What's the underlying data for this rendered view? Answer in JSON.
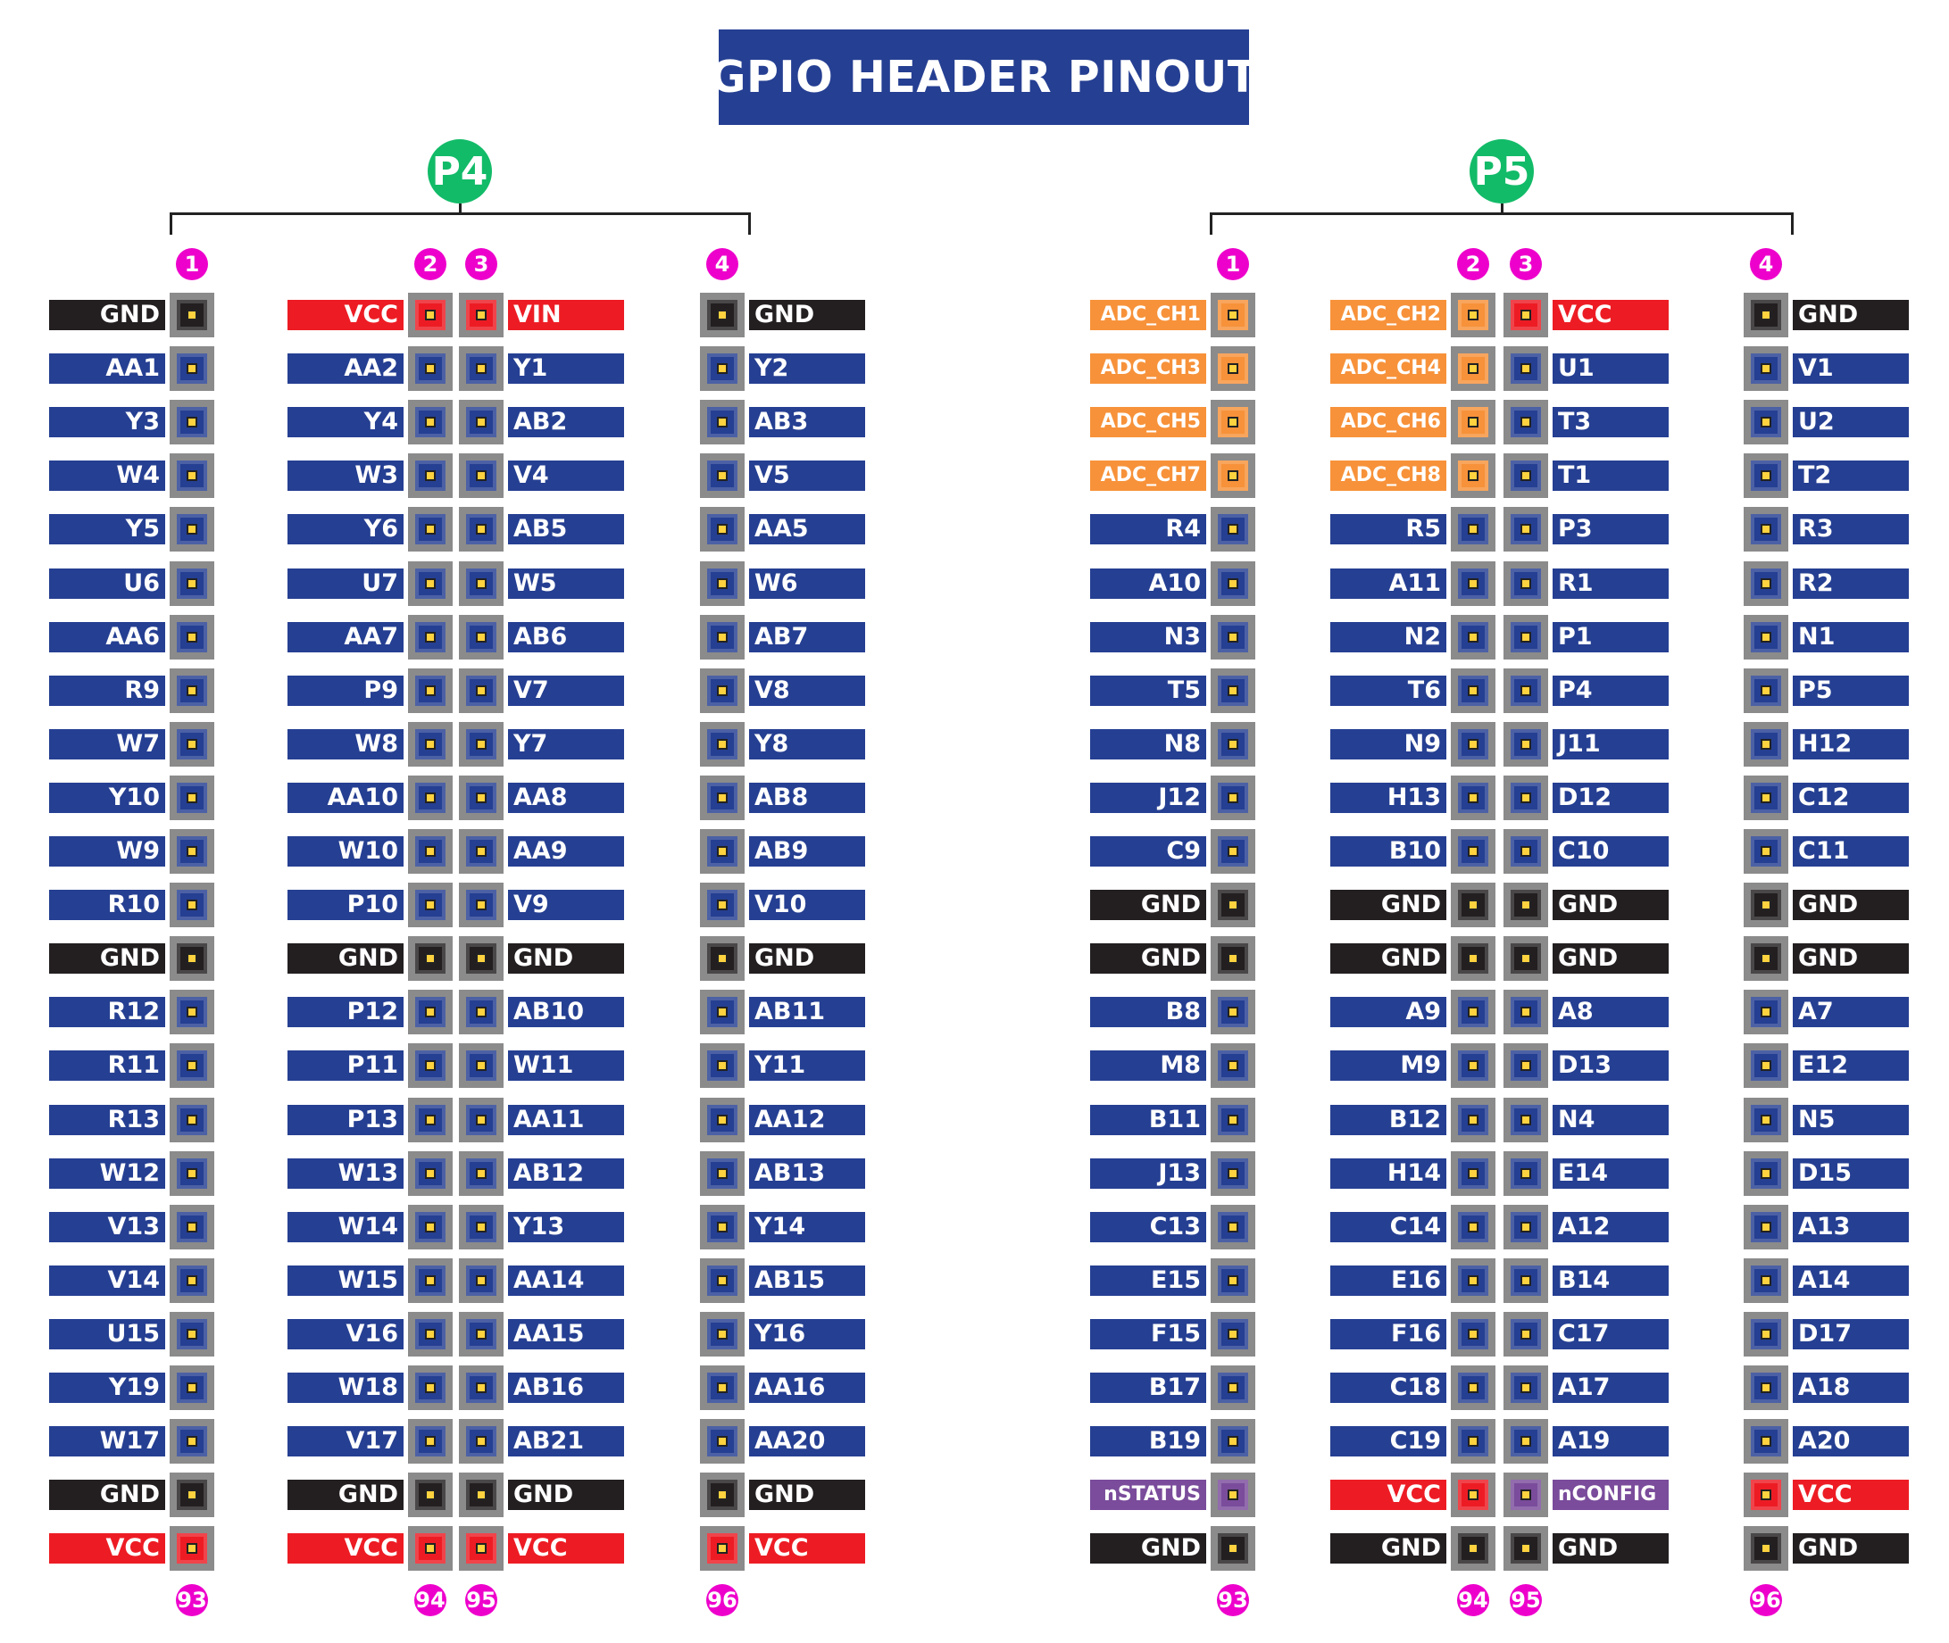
{
  "title": "GPIO HEADER PINOUT",
  "colors": {
    "title_bg": "#253f92",
    "header_badge": "#12bb68",
    "pin_number_badge": "#ee00cc",
    "io": "#253f92",
    "gnd": "#231f20",
    "vcc": "#ed1c24",
    "adc": "#f7923a",
    "cfg": "#7a4c9b",
    "pad_outer": "#8b8b8b",
    "pad_center": "#ffd23f"
  },
  "headers": [
    {
      "name": "P4",
      "top_numbers": [
        "1",
        "2",
        "3",
        "4"
      ],
      "bottom_numbers": [
        "93",
        "94",
        "95",
        "96"
      ],
      "rows": [
        [
          [
            "GND",
            "gnd"
          ],
          [
            "VCC",
            "vcc"
          ],
          [
            "VIN",
            "vcc"
          ],
          [
            "GND",
            "gnd"
          ]
        ],
        [
          [
            "AA1",
            "io"
          ],
          [
            "AA2",
            "io"
          ],
          [
            "Y1",
            "io"
          ],
          [
            "Y2",
            "io"
          ]
        ],
        [
          [
            "Y3",
            "io"
          ],
          [
            "Y4",
            "io"
          ],
          [
            "AB2",
            "io"
          ],
          [
            "AB3",
            "io"
          ]
        ],
        [
          [
            "W4",
            "io"
          ],
          [
            "W3",
            "io"
          ],
          [
            "V4",
            "io"
          ],
          [
            "V5",
            "io"
          ]
        ],
        [
          [
            "Y5",
            "io"
          ],
          [
            "Y6",
            "io"
          ],
          [
            "AB5",
            "io"
          ],
          [
            "AA5",
            "io"
          ]
        ],
        [
          [
            "U6",
            "io"
          ],
          [
            "U7",
            "io"
          ],
          [
            "W5",
            "io"
          ],
          [
            "W6",
            "io"
          ]
        ],
        [
          [
            "AA6",
            "io"
          ],
          [
            "AA7",
            "io"
          ],
          [
            "AB6",
            "io"
          ],
          [
            "AB7",
            "io"
          ]
        ],
        [
          [
            "R9",
            "io"
          ],
          [
            "P9",
            "io"
          ],
          [
            "V7",
            "io"
          ],
          [
            "V8",
            "io"
          ]
        ],
        [
          [
            "W7",
            "io"
          ],
          [
            "W8",
            "io"
          ],
          [
            "Y7",
            "io"
          ],
          [
            "Y8",
            "io"
          ]
        ],
        [
          [
            "Y10",
            "io"
          ],
          [
            "AA10",
            "io"
          ],
          [
            "AA8",
            "io"
          ],
          [
            "AB8",
            "io"
          ]
        ],
        [
          [
            "W9",
            "io"
          ],
          [
            "W10",
            "io"
          ],
          [
            "AA9",
            "io"
          ],
          [
            "AB9",
            "io"
          ]
        ],
        [
          [
            "R10",
            "io"
          ],
          [
            "P10",
            "io"
          ],
          [
            "V9",
            "io"
          ],
          [
            "V10",
            "io"
          ]
        ],
        [
          [
            "GND",
            "gnd"
          ],
          [
            "GND",
            "gnd"
          ],
          [
            "GND",
            "gnd"
          ],
          [
            "GND",
            "gnd"
          ]
        ],
        [
          [
            "R12",
            "io"
          ],
          [
            "P12",
            "io"
          ],
          [
            "AB10",
            "io"
          ],
          [
            "AB11",
            "io"
          ]
        ],
        [
          [
            "R11",
            "io"
          ],
          [
            "P11",
            "io"
          ],
          [
            "W11",
            "io"
          ],
          [
            "Y11",
            "io"
          ]
        ],
        [
          [
            "R13",
            "io"
          ],
          [
            "P13",
            "io"
          ],
          [
            "AA11",
            "io"
          ],
          [
            "AA12",
            "io"
          ]
        ],
        [
          [
            "W12",
            "io"
          ],
          [
            "W13",
            "io"
          ],
          [
            "AB12",
            "io"
          ],
          [
            "AB13",
            "io"
          ]
        ],
        [
          [
            "V13",
            "io"
          ],
          [
            "W14",
            "io"
          ],
          [
            "Y13",
            "io"
          ],
          [
            "Y14",
            "io"
          ]
        ],
        [
          [
            "V14",
            "io"
          ],
          [
            "W15",
            "io"
          ],
          [
            "AA14",
            "io"
          ],
          [
            "AB15",
            "io"
          ]
        ],
        [
          [
            "U15",
            "io"
          ],
          [
            "V16",
            "io"
          ],
          [
            "AA15",
            "io"
          ],
          [
            "Y16",
            "io"
          ]
        ],
        [
          [
            "Y19",
            "io"
          ],
          [
            "W18",
            "io"
          ],
          [
            "AB16",
            "io"
          ],
          [
            "AA16",
            "io"
          ]
        ],
        [
          [
            "W17",
            "io"
          ],
          [
            "V17",
            "io"
          ],
          [
            "AB21",
            "io"
          ],
          [
            "AA20",
            "io"
          ]
        ],
        [
          [
            "GND",
            "gnd"
          ],
          [
            "GND",
            "gnd"
          ],
          [
            "GND",
            "gnd"
          ],
          [
            "GND",
            "gnd"
          ]
        ],
        [
          [
            "VCC",
            "vcc"
          ],
          [
            "VCC",
            "vcc"
          ],
          [
            "VCC",
            "vcc"
          ],
          [
            "VCC",
            "vcc"
          ]
        ]
      ]
    },
    {
      "name": "P5",
      "top_numbers": [
        "1",
        "2",
        "3",
        "4"
      ],
      "bottom_numbers": [
        "93",
        "94",
        "95",
        "96"
      ],
      "rows": [
        [
          [
            "ADC_CH1",
            "adc"
          ],
          [
            "ADC_CH2",
            "adc"
          ],
          [
            "VCC",
            "vcc"
          ],
          [
            "GND",
            "gnd"
          ]
        ],
        [
          [
            "ADC_CH3",
            "adc"
          ],
          [
            "ADC_CH4",
            "adc"
          ],
          [
            "U1",
            "io"
          ],
          [
            "V1",
            "io"
          ]
        ],
        [
          [
            "ADC_CH5",
            "adc"
          ],
          [
            "ADC_CH6",
            "adc"
          ],
          [
            "T3",
            "io"
          ],
          [
            "U2",
            "io"
          ]
        ],
        [
          [
            "ADC_CH7",
            "adc"
          ],
          [
            "ADC_CH8",
            "adc"
          ],
          [
            "T1",
            "io"
          ],
          [
            "T2",
            "io"
          ]
        ],
        [
          [
            "R4",
            "io"
          ],
          [
            "R5",
            "io"
          ],
          [
            "P3",
            "io"
          ],
          [
            "R3",
            "io"
          ]
        ],
        [
          [
            "A10",
            "io"
          ],
          [
            "A11",
            "io"
          ],
          [
            "R1",
            "io"
          ],
          [
            "R2",
            "io"
          ]
        ],
        [
          [
            "N3",
            "io"
          ],
          [
            "N2",
            "io"
          ],
          [
            "P1",
            "io"
          ],
          [
            "N1",
            "io"
          ]
        ],
        [
          [
            "T5",
            "io"
          ],
          [
            "T6",
            "io"
          ],
          [
            "P4",
            "io"
          ],
          [
            "P5",
            "io"
          ]
        ],
        [
          [
            "N8",
            "io"
          ],
          [
            "N9",
            "io"
          ],
          [
            "J11",
            "io"
          ],
          [
            "H12",
            "io"
          ]
        ],
        [
          [
            "J12",
            "io"
          ],
          [
            "H13",
            "io"
          ],
          [
            "D12",
            "io"
          ],
          [
            "C12",
            "io"
          ]
        ],
        [
          [
            "C9",
            "io"
          ],
          [
            "B10",
            "io"
          ],
          [
            "C10",
            "io"
          ],
          [
            "C11",
            "io"
          ]
        ],
        [
          [
            "GND",
            "gnd"
          ],
          [
            "GND",
            "gnd"
          ],
          [
            "GND",
            "gnd"
          ],
          [
            "GND",
            "gnd"
          ]
        ],
        [
          [
            "GND",
            "gnd"
          ],
          [
            "GND",
            "gnd"
          ],
          [
            "GND",
            "gnd"
          ],
          [
            "GND",
            "gnd"
          ]
        ],
        [
          [
            "B8",
            "io"
          ],
          [
            "A9",
            "io"
          ],
          [
            "A8",
            "io"
          ],
          [
            "A7",
            "io"
          ]
        ],
        [
          [
            "M8",
            "io"
          ],
          [
            "M9",
            "io"
          ],
          [
            "D13",
            "io"
          ],
          [
            "E12",
            "io"
          ]
        ],
        [
          [
            "B11",
            "io"
          ],
          [
            "B12",
            "io"
          ],
          [
            "N4",
            "io"
          ],
          [
            "N5",
            "io"
          ]
        ],
        [
          [
            "J13",
            "io"
          ],
          [
            "H14",
            "io"
          ],
          [
            "E14",
            "io"
          ],
          [
            "D15",
            "io"
          ]
        ],
        [
          [
            "C13",
            "io"
          ],
          [
            "C14",
            "io"
          ],
          [
            "A12",
            "io"
          ],
          [
            "A13",
            "io"
          ]
        ],
        [
          [
            "E15",
            "io"
          ],
          [
            "E16",
            "io"
          ],
          [
            "B14",
            "io"
          ],
          [
            "A14",
            "io"
          ]
        ],
        [
          [
            "F15",
            "io"
          ],
          [
            "F16",
            "io"
          ],
          [
            "C17",
            "io"
          ],
          [
            "D17",
            "io"
          ]
        ],
        [
          [
            "B17",
            "io"
          ],
          [
            "C18",
            "io"
          ],
          [
            "A17",
            "io"
          ],
          [
            "A18",
            "io"
          ]
        ],
        [
          [
            "B19",
            "io"
          ],
          [
            "C19",
            "io"
          ],
          [
            "A19",
            "io"
          ],
          [
            "A20",
            "io"
          ]
        ],
        [
          [
            "nSTATUS",
            "cfg"
          ],
          [
            "VCC",
            "vcc"
          ],
          [
            "nCONFIG",
            "cfg"
          ],
          [
            "VCC",
            "vcc"
          ]
        ],
        [
          [
            "GND",
            "gnd"
          ],
          [
            "GND",
            "gnd"
          ],
          [
            "GND",
            "gnd"
          ],
          [
            "GND",
            "gnd"
          ]
        ]
      ]
    }
  ]
}
